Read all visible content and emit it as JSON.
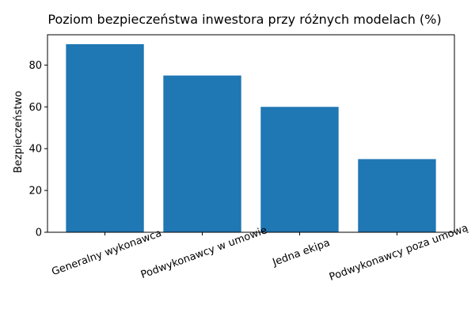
{
  "chart_data": {
    "type": "bar",
    "title": "Poziom bezpieczeństwa inwestora przy różnych modelach (%)",
    "xlabel": "",
    "ylabel": "Bezpieczeństwo",
    "categories": [
      "Generalny wykonawca",
      "Podwykonawcy w umowie",
      "Jedna ekipa",
      "Podwykonawcy poza umową"
    ],
    "values": [
      90,
      75,
      60,
      35
    ],
    "ylim": [
      0,
      94.5
    ],
    "yticks": [
      0,
      20,
      40,
      60,
      80
    ],
    "bar_color": "#1f77b4",
    "grid": false,
    "legend": "none"
  }
}
